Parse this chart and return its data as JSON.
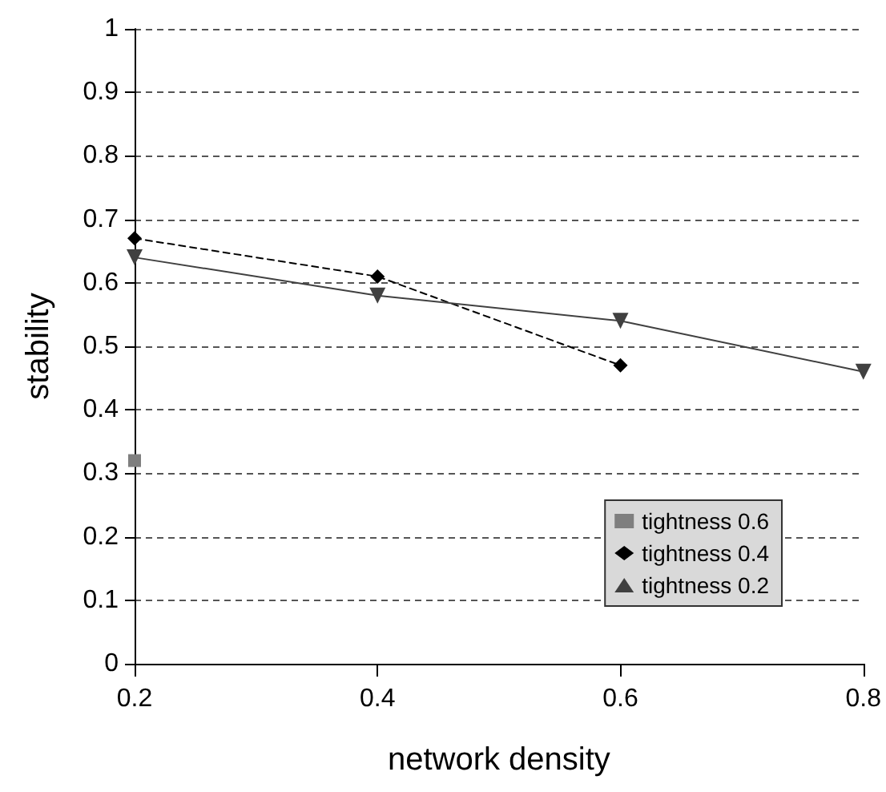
{
  "chart_data": {
    "type": "line",
    "xlabel": "network density",
    "ylabel": "stability",
    "xlim": [
      0.2,
      0.8
    ],
    "xticks": [
      0.2,
      0.4,
      0.6,
      0.8
    ],
    "ylim": [
      0,
      1
    ],
    "yticks": [
      0,
      0.1,
      0.2,
      0.3,
      0.4,
      0.5,
      0.6,
      0.7,
      0.8,
      0.9,
      1
    ],
    "x": [
      0.2,
      0.4,
      0.6,
      0.8
    ],
    "grid": "y",
    "legend": "bottom right",
    "series": [
      {
        "name": "tightness 0.6",
        "color": "#7f7f7f",
        "marker": "square",
        "line_style": "solid",
        "values": [
          0.32,
          null,
          null,
          null
        ]
      },
      {
        "name": "tightness 0.4",
        "color": "#000000",
        "marker": "diamond",
        "line_style": "dashed",
        "values": [
          0.67,
          0.61,
          0.47,
          null
        ]
      },
      {
        "name": "tightness 0.2",
        "color": "#404040",
        "marker": "triangle",
        "line_style": "solid",
        "values": [
          0.64,
          0.58,
          0.54,
          0.46
        ]
      }
    ]
  }
}
